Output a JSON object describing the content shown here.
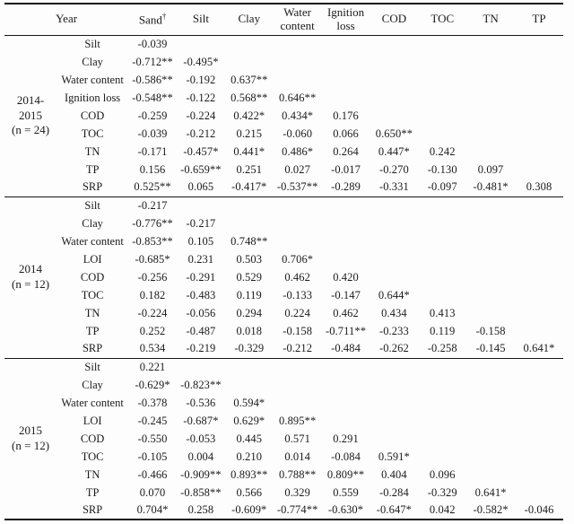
{
  "table": {
    "columns": [
      {
        "label": "Year",
        "colspan": 2
      },
      {
        "label": "Sand",
        "sup": "†"
      },
      {
        "label": "Silt"
      },
      {
        "label": "Clay"
      },
      {
        "label": "Water content"
      },
      {
        "label": "Ignition loss"
      },
      {
        "label": "COD"
      },
      {
        "label": "TOC"
      },
      {
        "label": "TN"
      },
      {
        "label": "TP"
      }
    ],
    "sections": [
      {
        "group_label_lines": [
          "2014-",
          "2015",
          "(n = 24)"
        ],
        "rows": [
          {
            "label": "Silt",
            "values": [
              "-0.039"
            ]
          },
          {
            "label": "Clay",
            "values": [
              "-0.712**",
              "-0.495*"
            ]
          },
          {
            "label": "Water content",
            "values": [
              "-0.586**",
              "-0.192",
              "0.637**"
            ]
          },
          {
            "label": "Ignition loss",
            "values": [
              "-0.548**",
              "-0.122",
              "0.568**",
              "0.646**"
            ]
          },
          {
            "label": "COD",
            "values": [
              "-0.259",
              "-0.224",
              "0.422*",
              "0.434*",
              "0.176"
            ]
          },
          {
            "label": "TOC",
            "values": [
              "-0.039",
              "-0.212",
              "0.215",
              "-0.060",
              "0.066",
              "0.650**"
            ]
          },
          {
            "label": "TN",
            "values": [
              "-0.171",
              "-0.457*",
              "0.441*",
              "0.486*",
              "0.264",
              "0.447*",
              "0.242"
            ]
          },
          {
            "label": "TP",
            "values": [
              "0.156",
              "-0.659**",
              "0.251",
              "0.027",
              "-0.017",
              "-0.270",
              "-0.130",
              "0.097"
            ]
          },
          {
            "label": "SRP",
            "values": [
              "0.525**",
              "0.065",
              "-0.417*",
              "-0.537**",
              "-0.289",
              "-0.331",
              "-0.097",
              "-0.481*",
              "0.308"
            ]
          }
        ]
      },
      {
        "group_label_lines": [
          "2014",
          "(n = 12)"
        ],
        "rows": [
          {
            "label": "Silt",
            "values": [
              "-0.217"
            ]
          },
          {
            "label": "Clay",
            "values": [
              "-0.776**",
              "-0.217"
            ]
          },
          {
            "label": "Water content",
            "values": [
              "-0.853**",
              "0.105",
              "0.748**"
            ]
          },
          {
            "label": "LOI",
            "values": [
              "-0.685*",
              "0.231",
              "0.503",
              "0.706*"
            ]
          },
          {
            "label": "COD",
            "values": [
              "-0.256",
              "-0.291",
              "0.529",
              "0.462",
              "0.420"
            ]
          },
          {
            "label": "TOC",
            "values": [
              "0.182",
              "-0.483",
              "0.119",
              "-0.133",
              "-0.147",
              "0.644*"
            ]
          },
          {
            "label": "TN",
            "values": [
              "-0.224",
              "-0.056",
              "0.294",
              "0.224",
              "0.462",
              "0.434",
              "0.413"
            ]
          },
          {
            "label": "TP",
            "values": [
              "0.252",
              "-0.487",
              "0.018",
              "-0.158",
              "-0.711**",
              "-0.233",
              "0.119",
              "-0.158"
            ]
          },
          {
            "label": "SRP",
            "values": [
              "0.534",
              "-0.219",
              "-0.329",
              "-0.212",
              "-0.484",
              "-0.262",
              "-0.258",
              "-0.145",
              "0.641*"
            ]
          }
        ]
      },
      {
        "group_label_lines": [
          "2015",
          "(n = 12)"
        ],
        "rows": [
          {
            "label": "Silt",
            "values": [
              "0.221"
            ]
          },
          {
            "label": "Clay",
            "values": [
              "-0.629*",
              "-0.823**"
            ]
          },
          {
            "label": "Water content",
            "values": [
              "-0.378",
              "-0.536",
              "0.594*"
            ]
          },
          {
            "label": "LOI",
            "values": [
              "-0.245",
              "-0.687*",
              "0.629*",
              "0.895**"
            ]
          },
          {
            "label": "COD",
            "values": [
              "-0.550",
              "-0.053",
              "0.445",
              "0.571",
              "0.291"
            ]
          },
          {
            "label": "TOC",
            "values": [
              "-0.105",
              "0.004",
              "0.210",
              "0.014",
              "-0.084",
              "0.591*"
            ]
          },
          {
            "label": "TN",
            "values": [
              "-0.466",
              "-0.909**",
              "0.893**",
              "0.788**",
              "0.809**",
              "0.404",
              "0.096"
            ]
          },
          {
            "label": "TP",
            "values": [
              "0.070",
              "-0.858**",
              "0.566",
              "0.329",
              "0.559",
              "-0.284",
              "-0.329",
              "0.641*"
            ]
          },
          {
            "label": "SRP",
            "values": [
              "0.704*",
              "0.258",
              "-0.609*",
              "-0.774**",
              "-0.630*",
              "-0.647*",
              "0.042",
              "-0.582*",
              "-0.046"
            ]
          }
        ]
      }
    ]
  }
}
